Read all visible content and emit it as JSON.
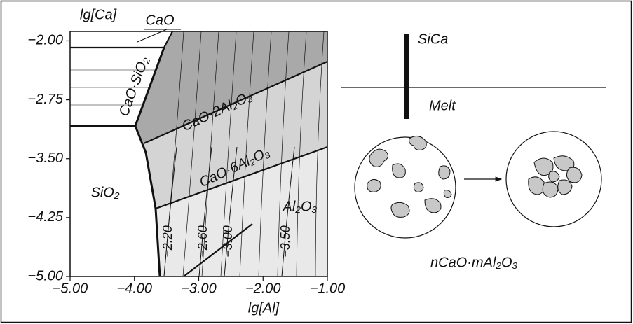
{
  "chart_data": {
    "type": "phase_diagram",
    "xlabel": "lg[Al]",
    "ylabel": "lg[Ca]",
    "xlim": [
      -5,
      -1
    ],
    "ylim": [
      -5,
      -1.88
    ],
    "xticks": [
      {
        "value": -5,
        "label": "−5.00"
      },
      {
        "value": -4,
        "label": "−4.00"
      },
      {
        "value": -3,
        "label": "−3.00"
      },
      {
        "value": -2,
        "label": "−2.00"
      },
      {
        "value": -1,
        "label": "−1.00"
      }
    ],
    "yticks": [
      {
        "value": -2,
        "label": "−2.00"
      },
      {
        "value": -2.75,
        "label": "−2.75"
      },
      {
        "value": -3.5,
        "label": "−3.50"
      },
      {
        "value": -4.25,
        "label": "−4.25"
      },
      {
        "value": -5,
        "label": "−5.00"
      }
    ],
    "regions": [
      {
        "name": "CaO",
        "color": "#ffffff"
      },
      {
        "name": "CaO·SiO₂",
        "color": "#ffffff"
      },
      {
        "name": "CaO·2Al₂O₃",
        "color": "#a9a9a9"
      },
      {
        "name": "CaO·6Al₂O₃",
        "color": "#d4d4d4"
      },
      {
        "name": "SiO₂",
        "color": "#ffffff"
      },
      {
        "name": "Al₂O₃",
        "color": "#e9e9e9"
      }
    ],
    "isolines": [
      {
        "value": -2.2,
        "label": "−2.20"
      },
      {
        "value": -2.6,
        "label": "−2.60"
      },
      {
        "value": -3.0,
        "label": "−3.00"
      },
      {
        "value": -3.5,
        "label": "−3.50"
      }
    ]
  },
  "schematic": {
    "rod_label": "SiCa",
    "melt_label": "Melt",
    "inclusion_label": "nCaO·mAl₂O₃"
  }
}
